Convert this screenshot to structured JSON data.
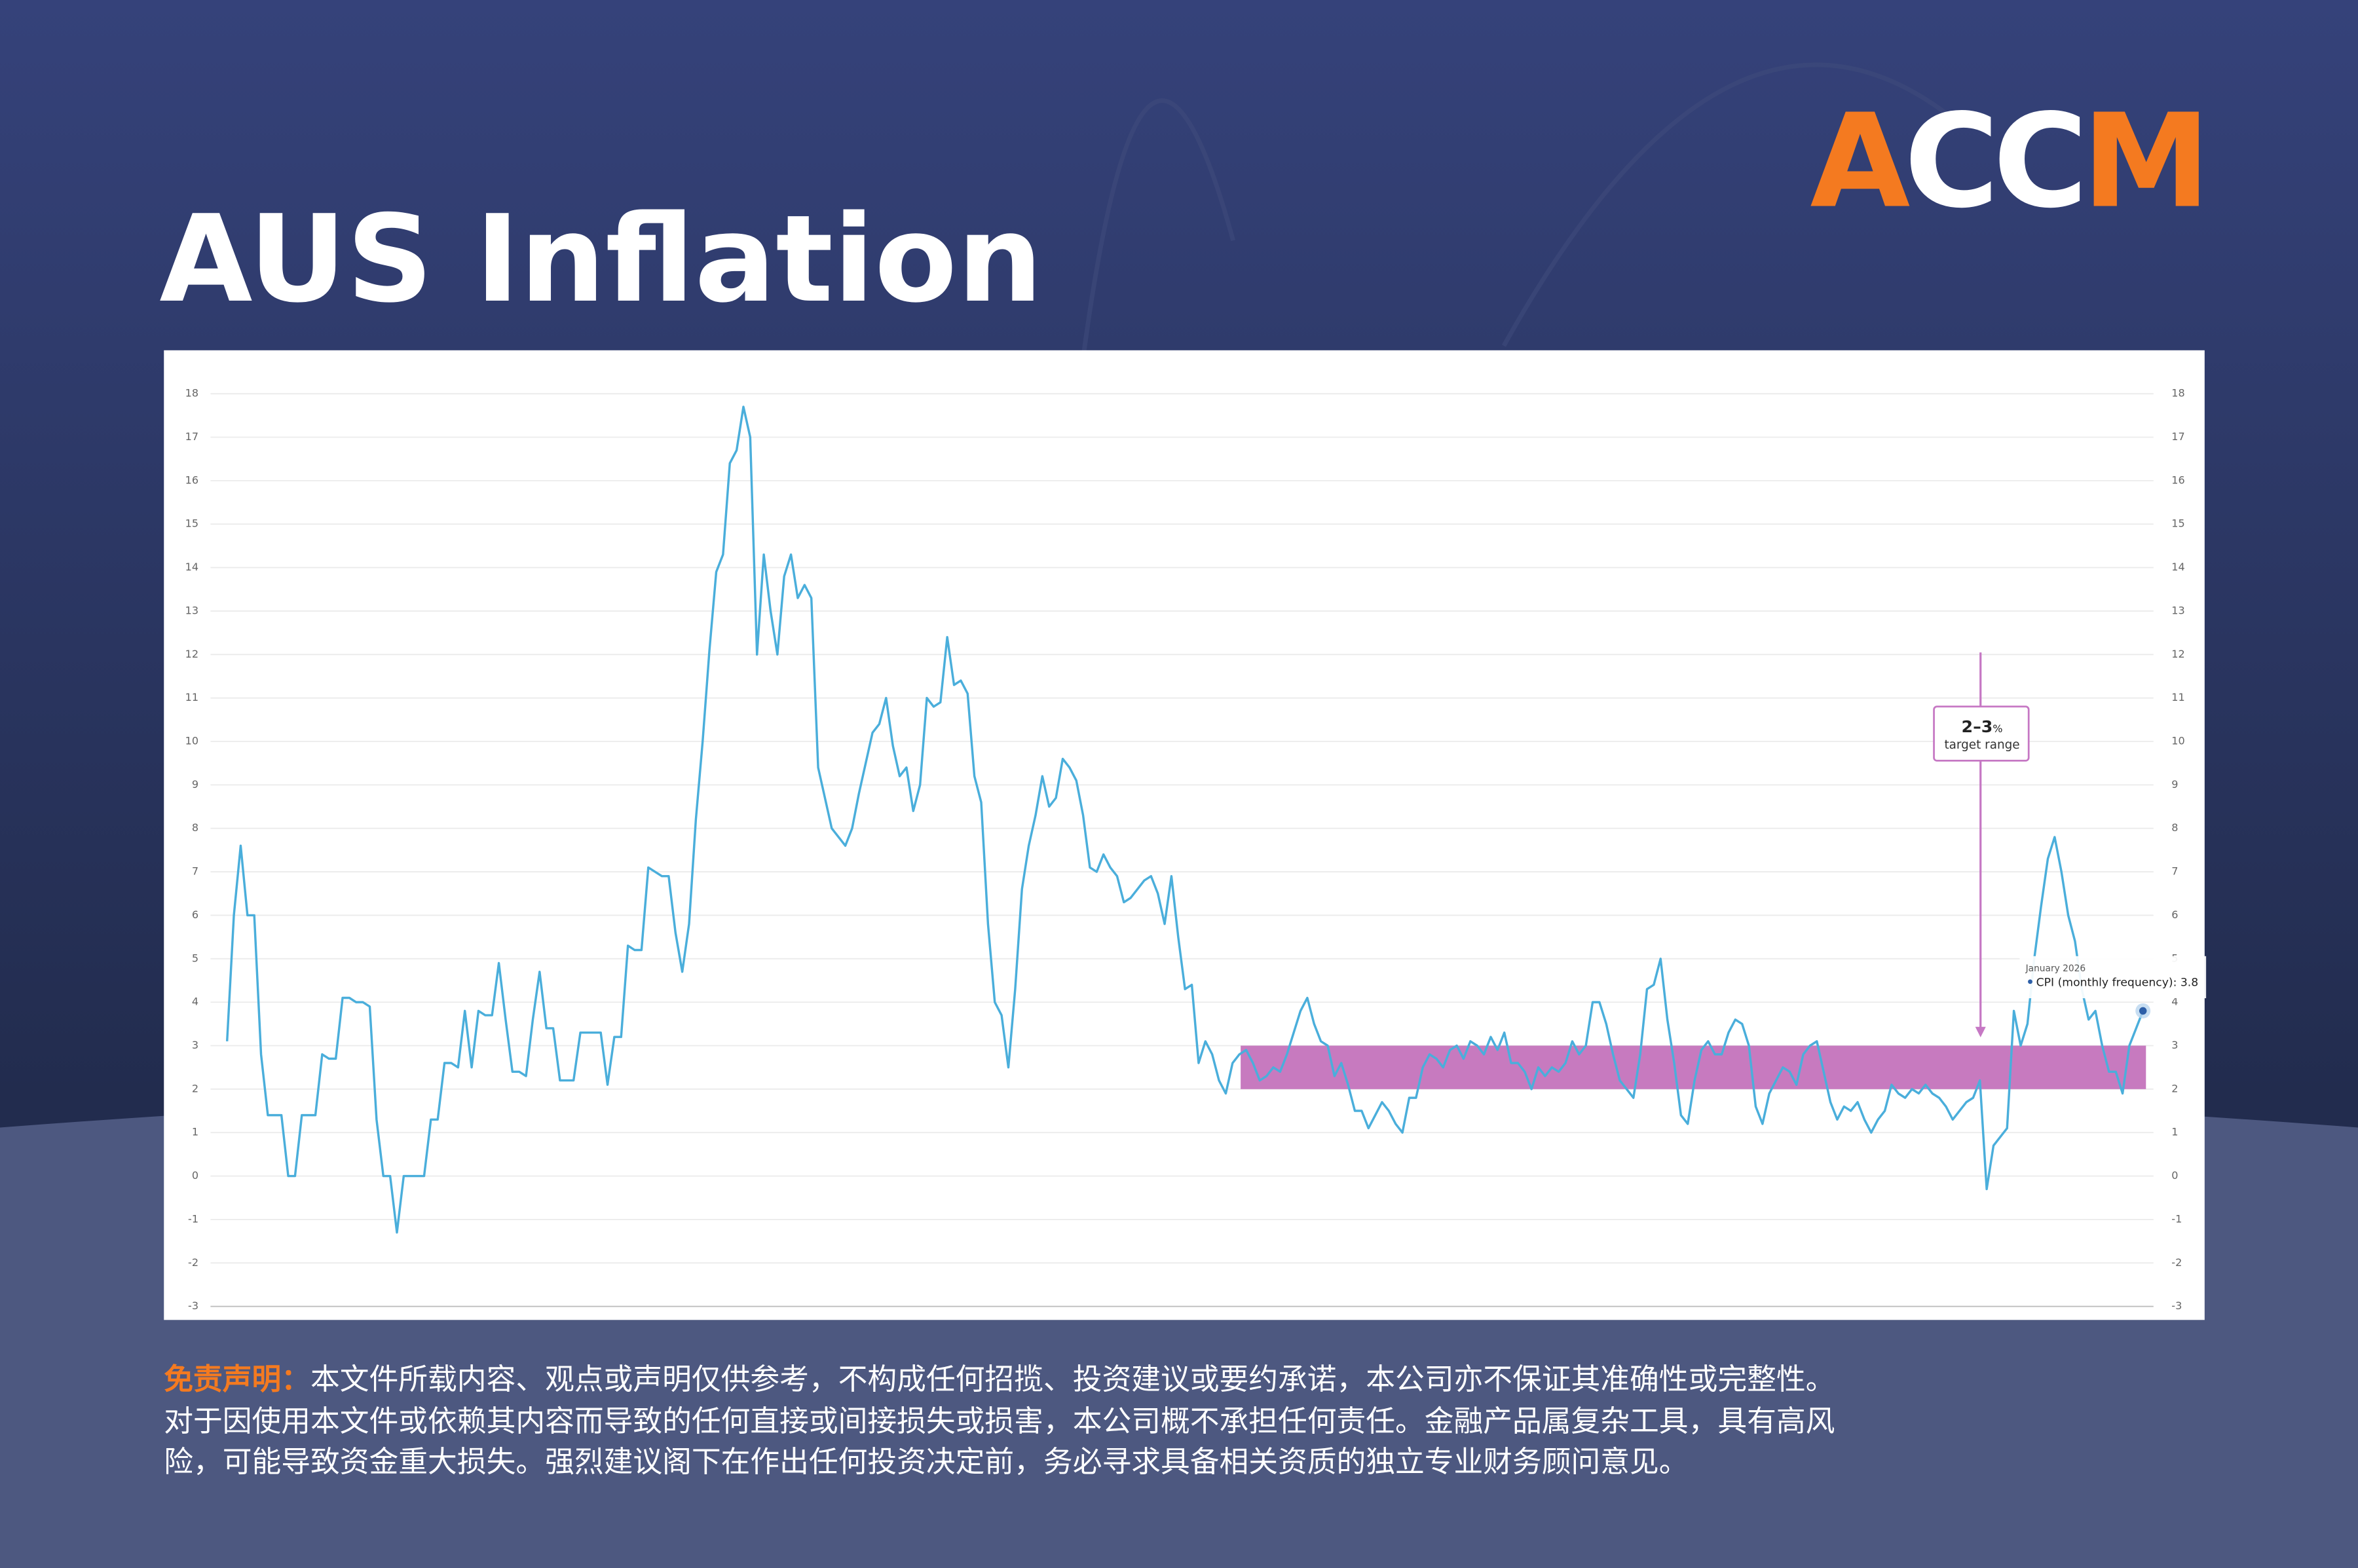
{
  "header": {
    "title": "AUS Inflation",
    "logo": {
      "part1": "A",
      "part2": "CC",
      "part3": "M"
    }
  },
  "chart_data": {
    "type": "line",
    "series": [
      {
        "name": "CPI (monthly frequency)",
        "color": "#4aaedb",
        "values": [
          3.1,
          6.0,
          7.6,
          6.0,
          6.0,
          2.8,
          1.4,
          1.4,
          1.4,
          0,
          0,
          1.4,
          1.4,
          1.4,
          2.8,
          2.7,
          2.7,
          4.1,
          4.1,
          4.0,
          4.0,
          3.9,
          1.3,
          0,
          0,
          -1.3,
          0,
          0,
          0,
          0,
          1.3,
          1.3,
          2.6,
          2.6,
          2.5,
          3.8,
          2.5,
          3.8,
          3.7,
          3.7,
          4.9,
          3.6,
          2.4,
          2.4,
          2.3,
          3.6,
          4.7,
          3.4,
          3.4,
          2.2,
          2.2,
          2.2,
          3.3,
          3.3,
          3.3,
          3.3,
          2.1,
          3.2,
          3.2,
          5.3,
          5.2,
          5.2,
          7.1,
          7.0,
          6.9,
          6.9,
          5.6,
          4.7,
          5.8,
          8.2,
          10.0,
          12.1,
          13.9,
          14.3,
          16.4,
          16.7,
          17.7,
          17.0,
          12.0,
          14.3,
          13.0,
          12.0,
          13.8,
          14.3,
          13.3,
          13.6,
          13.3,
          9.4,
          8.7,
          8.0,
          7.8,
          7.6,
          8.0,
          8.8,
          9.5,
          10.2,
          10.4,
          11.0,
          9.9,
          9.2,
          9.4,
          8.4,
          9.0,
          11.0,
          10.8,
          10.9,
          12.4,
          11.3,
          11.4,
          11.1,
          9.2,
          8.6,
          5.8,
          4.0,
          3.7,
          2.5,
          4.3,
          6.6,
          7.6,
          8.3,
          9.2,
          8.5,
          8.7,
          9.6,
          9.4,
          9.1,
          8.3,
          7.1,
          7.0,
          7.4,
          7.1,
          6.9,
          6.3,
          6.4,
          6.6,
          6.8,
          6.9,
          6.5,
          5.8,
          6.9,
          5.5,
          4.3,
          4.4,
          2.6,
          3.1,
          2.8,
          2.2,
          1.9,
          2.6,
          2.8,
          2.9,
          2.6,
          2.2,
          2.3,
          2.5,
          2.4,
          2.8,
          3.3,
          3.8,
          4.1,
          3.5,
          3.1,
          3.0,
          2.3,
          2.6,
          2.1,
          1.5,
          1.5,
          1.1,
          1.4,
          1.7,
          1.5,
          1.2,
          1.0,
          1.8,
          1.8,
          2.5,
          2.8,
          2.7,
          2.5,
          2.9,
          3.0,
          2.7,
          3.1,
          3.0,
          2.8,
          3.2,
          2.9,
          3.3,
          2.6,
          2.6,
          2.4,
          2.0,
          2.5,
          2.3,
          2.5,
          2.4,
          2.6,
          3.1,
          2.8,
          3.0,
          4.0,
          4.0,
          3.5,
          2.8,
          2.2,
          2.0,
          1.8,
          2.8,
          4.3,
          4.4,
          5.0,
          3.6,
          2.6,
          1.4,
          1.2,
          2.2,
          2.9,
          3.1,
          2.8,
          2.8,
          3.3,
          3.6,
          3.5,
          3.0,
          1.6,
          1.2,
          1.9,
          2.2,
          2.5,
          2.4,
          2.1,
          2.8,
          3.0,
          3.1,
          2.4,
          1.7,
          1.3,
          1.6,
          1.5,
          1.7,
          1.3,
          1.0,
          1.3,
          1.5,
          2.1,
          1.9,
          1.8,
          2.0,
          1.9,
          2.1,
          1.9,
          1.8,
          1.6,
          1.3,
          1.5,
          1.7,
          1.8,
          2.2,
          -0.3,
          0.7,
          0.9,
          1.1,
          3.8,
          3.0,
          3.5,
          5.0,
          6.2,
          7.3,
          7.8,
          7.0,
          6.0,
          5.4,
          4.3,
          3.6,
          3.8,
          3.0,
          2.4,
          2.4,
          1.9,
          3.0,
          3.4,
          3.8
        ]
      }
    ],
    "ylim": [
      -3,
      19
    ],
    "yticks": [
      -3,
      -2,
      -1,
      0,
      1,
      2,
      3,
      4,
      5,
      6,
      7,
      8,
      9,
      10,
      11,
      12,
      13,
      14,
      15,
      16,
      17,
      18
    ],
    "grid": true,
    "target_band": {
      "range": [
        2,
        3
      ],
      "color": "#c77abf"
    },
    "annotation": {
      "text": "2–3",
      "unit": "%",
      "sub": "target range",
      "color": "#c678c4"
    },
    "tooltip": {
      "date": "January 2026",
      "text": "CPI (monthly frequency): 3.8"
    }
  },
  "disclaimer": {
    "label": "免责声明：",
    "lines": [
      "本文件所载内容、观点或声明仅供参考，不构成任何招揽、投资建议或要约承诺，本公司亦不保证其准确性或完整性。",
      "对于因使用本文件或依赖其内容而导致的任何直接或间接损失或损害，本公司概不承担任何责任。金融产品属复杂工具，具有高风",
      "险，可能导致资金重大损失。强烈建议阁下在作出任何投资决定前，务必寻求具备相关资质的独立专业财务顾问意见。"
    ]
  }
}
